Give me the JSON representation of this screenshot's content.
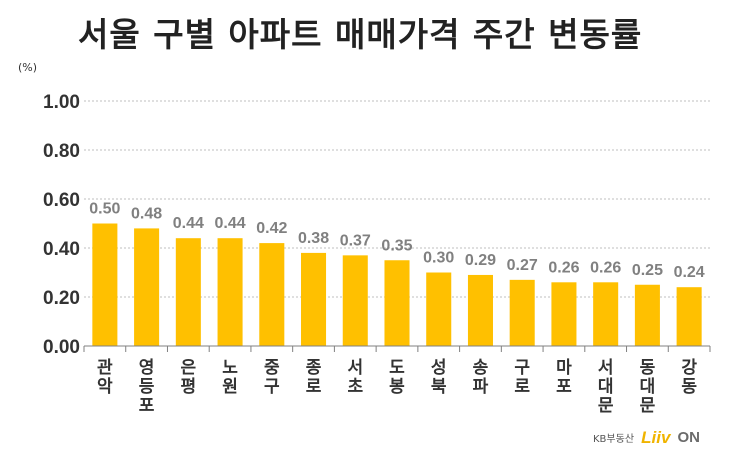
{
  "chart_data": {
    "type": "bar",
    "title": "서울 구별 아파트 매매가격 주간 변동률",
    "unit_label": "(%)",
    "categories": [
      "관악",
      "영등포",
      "은평",
      "노원",
      "중구",
      "종로",
      "서초",
      "도봉",
      "성북",
      "송파",
      "구로",
      "마포",
      "서대문",
      "동대문",
      "강동"
    ],
    "values": [
      0.5,
      0.48,
      0.44,
      0.44,
      0.42,
      0.38,
      0.37,
      0.35,
      0.3,
      0.29,
      0.27,
      0.26,
      0.26,
      0.25,
      0.24
    ],
    "value_labels": [
      "0.50",
      "0.48",
      "0.44",
      "0.44",
      "0.42",
      "0.38",
      "0.37",
      "0.35",
      "0.30",
      "0.29",
      "0.27",
      "0.26",
      "0.26",
      "0.25",
      "0.24"
    ],
    "y_ticks": [
      "0.00",
      "0.20",
      "0.40",
      "0.60",
      "0.80",
      "1.00"
    ],
    "ylim": [
      0,
      1.0
    ],
    "grid": true,
    "bar_color": "#ffc000",
    "value_label_color": "#808080"
  },
  "logo": {
    "kb": "KB부동산",
    "liiv": "Liiv",
    "on": "ON"
  }
}
